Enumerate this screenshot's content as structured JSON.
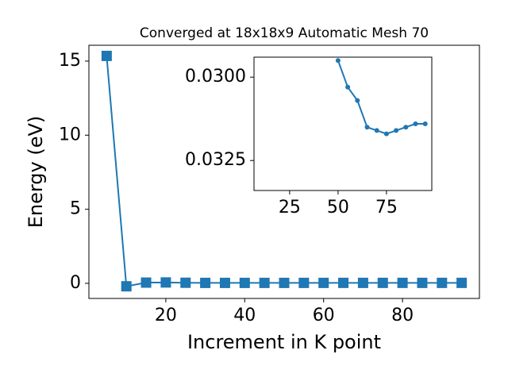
{
  "chart_data": [
    {
      "type": "line",
      "title": "Converged at 18x18x9 Automatic Mesh 70",
      "x_label": "Increment in K point",
      "y_label": "Energy (eV)",
      "marker": "square",
      "color": "#1f77b4",
      "x": [
        5,
        10,
        15,
        20,
        25,
        30,
        35,
        40,
        45,
        50,
        55,
        60,
        65,
        70,
        75,
        80,
        85,
        90,
        95
      ],
      "values": [
        15.35,
        -0.2,
        0.05,
        0.06,
        0.04,
        0.03,
        0.03,
        0.03,
        0.03,
        0.0295,
        0.0303,
        0.0307,
        0.0315,
        0.0316,
        0.0317,
        0.0316,
        0.0315,
        0.0314,
        0.0314
      ],
      "xlim": [
        0.5,
        99.5
      ],
      "ylim": [
        -1.02,
        16.07
      ],
      "xticks": [
        20,
        40,
        60,
        80
      ],
      "yticks": [
        0,
        5,
        10,
        15
      ]
    },
    {
      "type": "line",
      "marker": "circle",
      "color": "#1f77b4",
      "x": [
        50,
        55,
        60,
        65,
        70,
        75,
        80,
        85,
        90,
        95
      ],
      "values": [
        0.0295,
        0.0303,
        0.0307,
        0.0315,
        0.0316,
        0.0317,
        0.0316,
        0.0315,
        0.0314,
        0.0314
      ],
      "xlim": [
        6.6,
        98.4
      ],
      "ylim": [
        0.0334,
        0.0294
      ],
      "xticks": [
        25,
        50,
        75
      ],
      "yticks": [
        {
          "value": 0.03,
          "label": "0.0300"
        },
        {
          "value": 0.0325,
          "label": "0.0325"
        }
      ]
    }
  ]
}
